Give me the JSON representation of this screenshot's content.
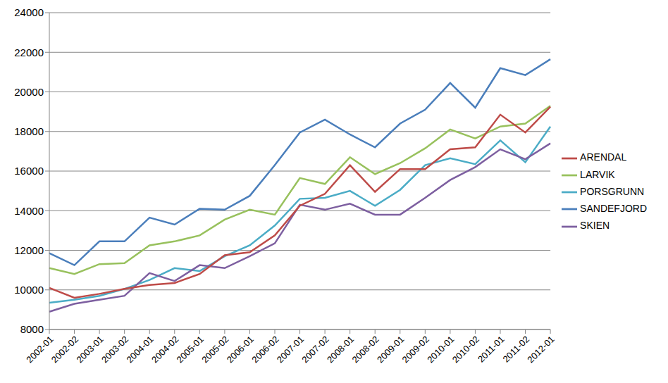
{
  "chart_data": {
    "type": "line",
    "categories": [
      "2002-01",
      "2002-02",
      "2003-01",
      "2003-02",
      "2004-01",
      "2004-02",
      "2005-01",
      "2005-02",
      "2006-01",
      "2006-02",
      "2007-01",
      "2007-02",
      "2008-01",
      "2008-02",
      "2009-01",
      "2009-02",
      "2010-01",
      "2010-02",
      "2011-01",
      "2011-02",
      "2012-01"
    ],
    "series": [
      {
        "name": "SANDEFJORD",
        "color": "#4a7ebb",
        "values": [
          11850,
          11250,
          12450,
          12450,
          13650,
          13300,
          14100,
          14050,
          14750,
          16300,
          17950,
          18600,
          17850,
          17200,
          18400,
          19100,
          20450,
          19200,
          21200,
          20850,
          21650
        ]
      },
      {
        "name": "LARVIK",
        "color": "#98c15d",
        "values": [
          11100,
          10800,
          11300,
          11350,
          12250,
          12450,
          12750,
          13550,
          14050,
          13800,
          15650,
          15350,
          16700,
          15850,
          16400,
          17150,
          18100,
          17650,
          18250,
          18400,
          19300
        ]
      },
      {
        "name": "PORSGRUNN",
        "color": "#4bacc6",
        "values": [
          9350,
          9500,
          9700,
          10050,
          10500,
          11100,
          10950,
          11700,
          12250,
          13250,
          14600,
          14650,
          15000,
          14250,
          15050,
          16300,
          16650,
          16350,
          17550,
          16450,
          18250
        ]
      },
      {
        "name": "SKIEN",
        "color": "#7d5fa0",
        "values": [
          8900,
          9300,
          9500,
          9700,
          10850,
          10450,
          11250,
          11100,
          11700,
          12350,
          14300,
          14050,
          14350,
          13800,
          13800,
          14650,
          15550,
          16200,
          17100,
          16600,
          17400
        ]
      },
      {
        "name": "ARENDAL",
        "color": "#be4b48",
        "values": [
          10100,
          9600,
          9800,
          10050,
          10250,
          10350,
          10800,
          11750,
          11900,
          12750,
          14250,
          14850,
          16300,
          14950,
          16100,
          16100,
          17100,
          17200,
          18850,
          17950,
          19250
        ]
      }
    ],
    "ylim": [
      8000,
      24000
    ],
    "yticks": [
      8000,
      10000,
      12000,
      14000,
      16000,
      18000,
      20000,
      22000,
      24000
    ],
    "grid": true,
    "legend": "right"
  }
}
